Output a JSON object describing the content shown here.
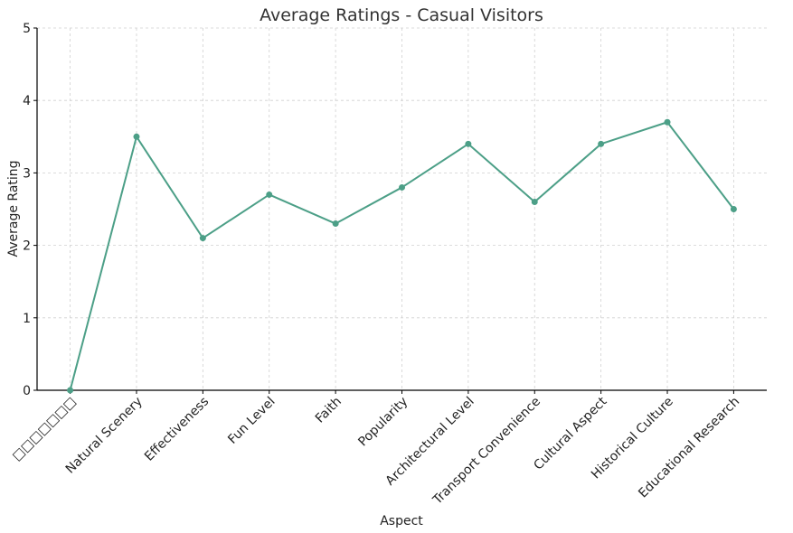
{
  "chart_data": {
    "type": "line",
    "title": "Average Ratings - Casual Visitors",
    "xlabel": "Aspect",
    "ylabel": "Average Rating",
    "categories": [
      "□□□□□□□",
      "Natural Scenery",
      "Effectiveness",
      "Fun Level",
      "Faith",
      "Popularity",
      "Architectural Level",
      "Transport Convenience",
      "Cultural Aspect",
      "Historical Culture",
      "Educational Research"
    ],
    "series": [
      {
        "values": [
          0,
          3.5,
          2.1,
          2.7,
          2.3,
          2.8,
          3.4,
          2.6,
          3.4,
          3.7,
          2.5
        ]
      }
    ],
    "ylim": [
      0,
      5
    ],
    "yticks": [
      0,
      1,
      2,
      3,
      4,
      5
    ],
    "grid": true,
    "line_color": "#4c9f87"
  }
}
